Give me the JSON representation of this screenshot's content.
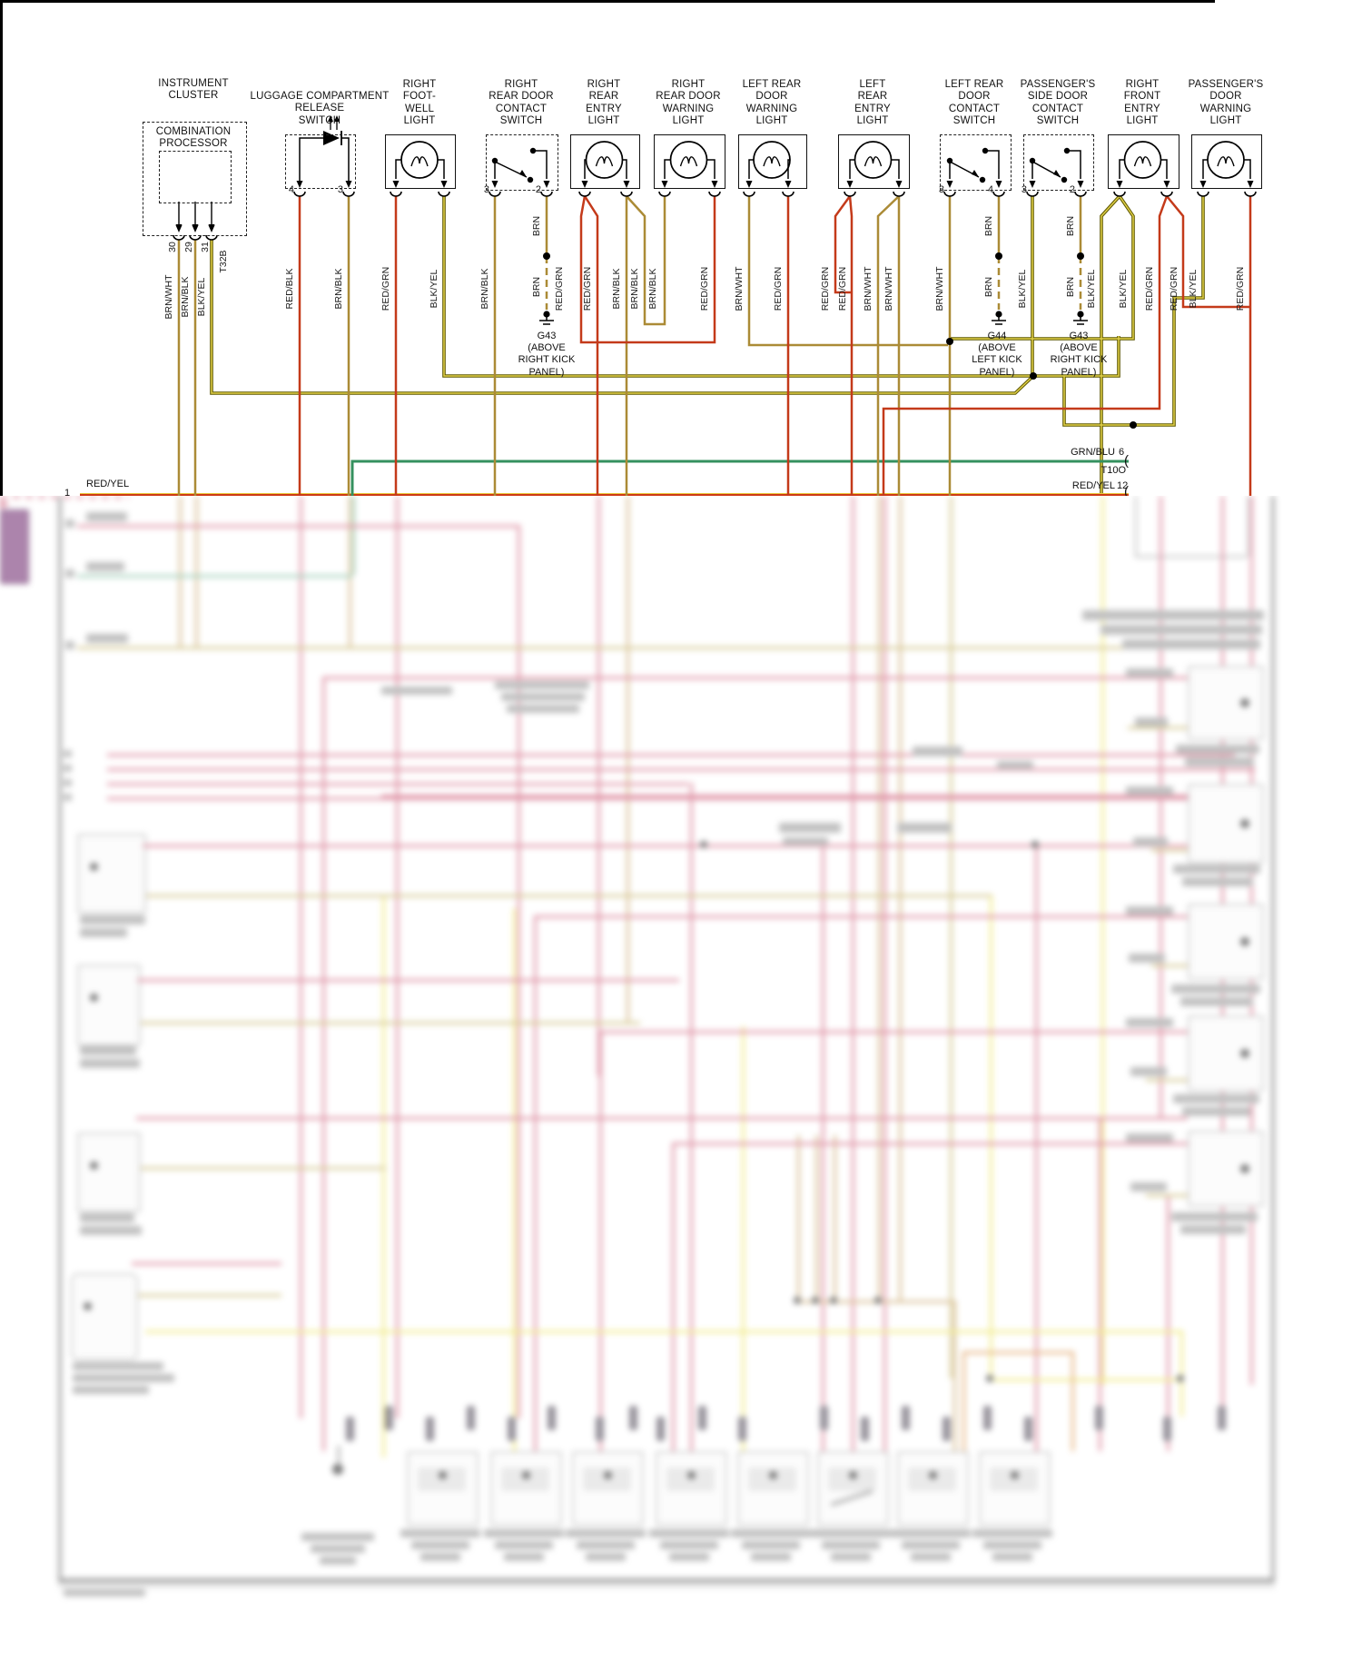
{
  "components": [
    {
      "id": "instrument-cluster",
      "label": [
        "INSTRUMENT",
        "CLUSTER"
      ],
      "sublabel": [
        "COMBINATION",
        "PROCESSOR"
      ],
      "pins": [
        "30",
        "29",
        "31"
      ],
      "connector_tag": "T32B",
      "wire_labels": [
        "BRN/WHT",
        "BRN/BLK",
        "BLK/YEL"
      ]
    },
    {
      "id": "luggage-compartment-release-switch",
      "label": [
        "LUGGAGE COMPARTMENT",
        "RELEASE",
        "SWITCH"
      ],
      "pins": [
        "4",
        "3"
      ],
      "wire_labels": [
        "RED/BLK",
        "BRN/BLK"
      ]
    },
    {
      "id": "right-foot-well-light",
      "label": [
        "RIGHT",
        "FOOT-",
        "WELL",
        "LIGHT"
      ],
      "pins": [],
      "wire_labels": [
        "RED/GRN",
        "BLK/YEL"
      ]
    },
    {
      "id": "right-rear-door-contact-switch",
      "label": [
        "RIGHT",
        "REAR DOOR",
        "CONTACT",
        "SWITCH"
      ],
      "pins": [
        "3",
        "2"
      ],
      "wire_labels": [
        "BRN/BLK",
        "BRN",
        "BRN"
      ]
    },
    {
      "id": "right-rear-entry-light",
      "label": [
        "RIGHT",
        "REAR",
        "ENTRY",
        "LIGHT"
      ],
      "pins": [],
      "wire_labels": [
        "RED/GRN",
        "RED/GRN",
        "BRN/BLK",
        "BRN/BLK",
        "BRN/BLK"
      ]
    },
    {
      "id": "right-rear-door-warning-light",
      "label": [
        "RIGHT",
        "REAR DOOR",
        "WARNING",
        "LIGHT"
      ],
      "pins": [],
      "wire_labels": [
        "RED/GRN"
      ]
    },
    {
      "id": "left-rear-door-warning-light",
      "label": [
        "LEFT REAR",
        "DOOR",
        "WARNING",
        "LIGHT"
      ],
      "pins": [],
      "wire_labels": [
        "BRN/WHT",
        "RED/GRN"
      ]
    },
    {
      "id": "left-rear-entry-light",
      "label": [
        "LEFT",
        "REAR",
        "ENTRY",
        "LIGHT"
      ],
      "pins": [],
      "wire_labels": [
        "RED/GRN",
        "RED/GRN",
        "BRN/WHT",
        "BRN/WHT"
      ]
    },
    {
      "id": "left-rear-door-contact-switch",
      "label": [
        "LEFT REAR",
        "DOOR",
        "CONTACT",
        "SWITCH"
      ],
      "pins": [
        "3",
        "4"
      ],
      "wire_labels": [
        "BRN/WHT",
        "BRN",
        "BRN"
      ]
    },
    {
      "id": "passengers-side-door-contact-switch",
      "label": [
        "PASSENGER'S",
        "SIDE DOOR",
        "CONTACT",
        "SWITCH"
      ],
      "pins": [
        "3",
        "2"
      ],
      "wire_labels": [
        "BLK/YEL",
        "BRN",
        "BRN"
      ]
    },
    {
      "id": "right-front-entry-light",
      "label": [
        "RIGHT",
        "FRONT",
        "ENTRY",
        "LIGHT"
      ],
      "pins": [],
      "wire_labels": [
        "BLK/YEL",
        "BLK/YEL",
        "RED/GRN",
        "RED/GRN"
      ]
    },
    {
      "id": "passengers-door-warning-light",
      "label": [
        "PASSENGER'S",
        "DOOR",
        "WARNING",
        "LIGHT"
      ],
      "pins": [],
      "wire_labels": [
        "BLK/YEL",
        "RED/GRN"
      ]
    }
  ],
  "grounds": [
    {
      "id": "g43-right-rear",
      "name": "G43",
      "note": [
        "(ABOVE",
        "RIGHT KICK",
        "PANEL)"
      ]
    },
    {
      "id": "g44-left",
      "name": "G44",
      "note": [
        "(ABOVE",
        "LEFT KICK",
        "PANEL)"
      ]
    },
    {
      "id": "g43-passenger",
      "name": "G43",
      "note": [
        "(ABOVE",
        "RIGHT KICK",
        "PANEL)"
      ]
    }
  ],
  "right_connector": {
    "tag": "T10O",
    "pins": [
      {
        "wire": "GRN/BLU",
        "pin": "6"
      },
      {
        "wire": "RED/YEL",
        "pin": "12"
      }
    ]
  },
  "left_feed": {
    "wire": "RED/YEL",
    "pin": "1"
  },
  "wire_colors": {
    "red": "#c43a1a",
    "brown": "#ab8b36",
    "black_yellow_edge": "#5f5800",
    "black_yellow_core": "#e0d048",
    "green_blue": "#35915f",
    "red_yellow_edge": "#e8c83c",
    "red_yellow_core": "#ce3a14"
  }
}
